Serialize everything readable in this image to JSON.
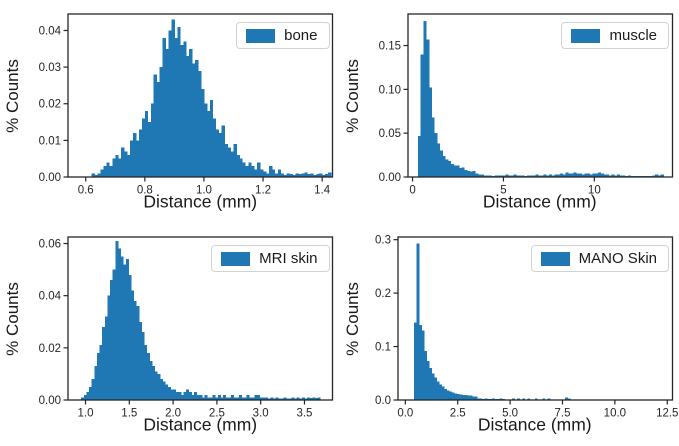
{
  "figure": {
    "background": "#ffffff",
    "bar_color": "#1f77b4",
    "axis_color": "#262626",
    "text_color": "#1a1a1a"
  },
  "chart_data": [
    {
      "type": "histogram",
      "legend": "bone",
      "legend_position": "upper right",
      "xlabel": "Distance (mm)",
      "ylabel": "% Counts",
      "grid": false,
      "xlim": [
        0.54,
        1.435
      ],
      "ylim": [
        0,
        0.0445
      ],
      "xticks": [
        0.6,
        0.8,
        1.0,
        1.2,
        1.4
      ],
      "xtick_labels": [
        "0.6",
        "0.8",
        "1.0",
        "1.2",
        "1.4"
      ],
      "yticks": [
        0,
        0.01,
        0.02,
        0.03,
        0.04
      ],
      "ytick_labels": [
        "0.00",
        "0.01",
        "0.02",
        "0.03",
        "0.04"
      ],
      "bins": {
        "start": 0.62,
        "width": 0.01
      },
      "heights": [
        0.001,
        0.0005,
        0.001,
        0.002,
        0.003,
        0.004,
        0.003,
        0.005,
        0.006,
        0.005,
        0.008,
        0.007,
        0.006,
        0.01,
        0.012,
        0.01,
        0.013,
        0.016,
        0.018,
        0.015,
        0.02,
        0.028,
        0.026,
        0.03,
        0.038,
        0.035,
        0.04,
        0.043,
        0.038,
        0.041,
        0.036,
        0.037,
        0.033,
        0.035,
        0.031,
        0.032,
        0.029,
        0.024,
        0.02,
        0.018,
        0.021,
        0.016,
        0.013,
        0.012,
        0.014,
        0.009,
        0.008,
        0.007,
        0.009,
        0.006,
        0.005,
        0.004,
        0.003,
        0.004,
        0.003,
        0.002,
        0.004,
        0.002,
        0.0015,
        0.001,
        0.003,
        0.002,
        0.001,
        0.002,
        0.001,
        0.0005,
        0.001,
        0.0008,
        0.0005,
        0.001,
        0.0008,
        0.001,
        0.0012,
        0.0008,
        0.001,
        0.0005,
        0.0008,
        0.001,
        0.0005,
        0.0008,
        0.0012
      ]
    },
    {
      "type": "histogram",
      "legend": "muscle",
      "legend_position": "upper right",
      "xlabel": "Distance (mm)",
      "ylabel": "% Counts",
      "grid": false,
      "xlim": [
        -0.25,
        14.3
      ],
      "ylim": [
        0,
        0.186
      ],
      "xticks": [
        0,
        5,
        10
      ],
      "xtick_labels": [
        "0",
        "5",
        "10"
      ],
      "yticks": [
        0,
        0.05,
        0.1,
        0.15
      ],
      "ytick_labels": [
        "0.00",
        "0.05",
        "0.10",
        "0.15"
      ],
      "bins": {
        "start": 0.3,
        "width": 0.15
      },
      "heights": [
        0.047,
        0.14,
        0.178,
        0.157,
        0.102,
        0.068,
        0.05,
        0.038,
        0.03,
        0.024,
        0.02,
        0.018,
        0.015,
        0.013,
        0.013,
        0.01,
        0.011,
        0.008,
        0.007,
        0.006,
        0.007,
        0.004,
        0.003,
        0.003,
        0.002,
        0.002,
        0.002,
        0.001,
        0.002,
        0.002,
        0.002,
        0.002,
        0.003,
        0.002,
        0.002,
        0.003,
        0.002,
        0.002,
        0.002,
        0.001,
        0.002,
        0.002,
        0.002,
        0.003,
        0.002,
        0.002,
        0.003,
        0.002,
        0.003,
        0.002,
        0.003,
        0.003,
        0.004,
        0.003,
        0.005,
        0.004,
        0.004,
        0.005,
        0.004,
        0.004,
        0.003,
        0.004,
        0.004,
        0.003,
        0.004,
        0.004,
        0.005,
        0.004,
        0.003,
        0.003,
        0.002,
        0.003,
        0.002,
        0.003,
        0.002,
        0.002,
        0.001,
        0.002,
        0.001,
        0.001,
        0.001,
        0.001,
        0.001,
        0.001,
        0.001,
        0.001,
        0.002,
        0.003,
        0.002,
        0.003
      ]
    },
    {
      "type": "histogram",
      "legend": "MRI skin",
      "legend_position": "upper right",
      "xlabel": "Distance (mm)",
      "ylabel": "% Counts",
      "grid": false,
      "xlim": [
        0.8,
        3.82
      ],
      "ylim": [
        0,
        0.0625
      ],
      "xticks": [
        1.0,
        1.5,
        2.0,
        2.5,
        3.0,
        3.5
      ],
      "xtick_labels": [
        "1.0",
        "1.5",
        "2.0",
        "2.5",
        "3.0",
        "3.5"
      ],
      "yticks": [
        0,
        0.02,
        0.04,
        0.06
      ],
      "ytick_labels": [
        "0.00",
        "0.02",
        "0.04",
        "0.06"
      ],
      "bins": {
        "start": 0.95,
        "width": 0.03
      },
      "heights": [
        0.001,
        0.002,
        0.003,
        0.005,
        0.008,
        0.013,
        0.018,
        0.021,
        0.028,
        0.032,
        0.04,
        0.046,
        0.05,
        0.061,
        0.058,
        0.055,
        0.052,
        0.054,
        0.048,
        0.042,
        0.038,
        0.036,
        0.03,
        0.026,
        0.021,
        0.018,
        0.015,
        0.013,
        0.011,
        0.01,
        0.008,
        0.007,
        0.006,
        0.005,
        0.004,
        0.004,
        0.003,
        0.003,
        0.002,
        0.003,
        0.004,
        0.003,
        0.002,
        0.003,
        0.002,
        0.002,
        0.001,
        0.002,
        0.001,
        0.001,
        0.002,
        0.001,
        0.002,
        0.001,
        0.002,
        0.001,
        0.001,
        0.002,
        0.001,
        0.001,
        0.002,
        0.001,
        0.001,
        0.002,
        0.001,
        0.001,
        0.002,
        0.002,
        0.001,
        0.001,
        0.001,
        0.0005,
        0.001,
        0.0005,
        0.001,
        0.0005,
        0.0005,
        0.001,
        0.0005,
        0.0005,
        0.001,
        0.0005,
        0.001,
        0.0005,
        0.001,
        0.0005,
        0.001,
        0.0008,
        0.001,
        0.0008,
        0.001
      ]
    },
    {
      "type": "histogram",
      "legend": "MANO Skin",
      "legend_position": "upper right",
      "xlabel": "Distance (mm)",
      "ylabel": "% Counts",
      "grid": false,
      "xlim": [
        -0.35,
        12.75
      ],
      "ylim": [
        0,
        0.305
      ],
      "xticks": [
        0.0,
        2.5,
        5.0,
        7.5,
        10.0,
        12.5
      ],
      "xtick_labels": [
        "0.0",
        "2.5",
        "5.0",
        "7.5",
        "10.0",
        "12.5"
      ],
      "yticks": [
        0,
        0.1,
        0.2,
        0.3
      ],
      "ytick_labels": [
        "0.0",
        "0.1",
        "0.2",
        "0.3"
      ],
      "bins": {
        "start": 0.42,
        "width": 0.12
      },
      "heights": [
        0.145,
        0.293,
        0.14,
        0.13,
        0.092,
        0.073,
        0.06,
        0.05,
        0.042,
        0.035,
        0.029,
        0.025,
        0.021,
        0.018,
        0.016,
        0.014,
        0.012,
        0.011,
        0.01,
        0.009,
        0.009,
        0.008,
        0.008,
        0.007,
        0.007,
        0.003,
        0.003,
        0.002,
        0.003,
        0.002,
        0.002,
        0.003,
        0.002,
        0.002,
        0.003,
        0.002,
        0.0,
        0.0,
        0.0,
        0.003,
        0.0,
        0.003,
        0.0,
        0.003,
        0.0,
        0.003,
        0.0,
        0.0,
        0.003,
        0.0,
        0.0,
        0.003,
        0.0,
        0.003,
        0.0,
        0.0,
        0.0,
        0.0,
        0.0,
        0.0,
        0.005,
        0.003
      ]
    }
  ]
}
